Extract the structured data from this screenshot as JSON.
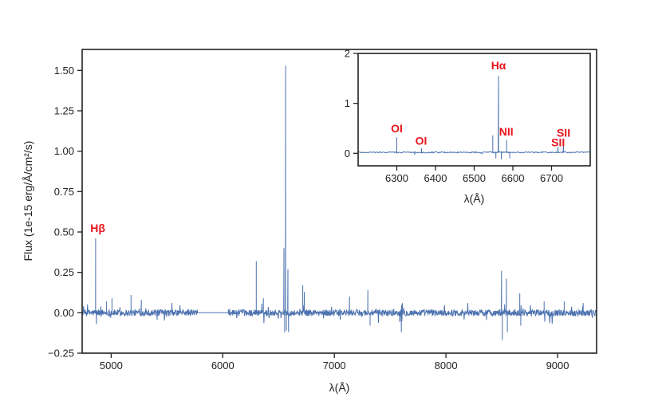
{
  "chart_data": [
    {
      "type": "line",
      "title": "",
      "xlabel": "λ(Å)",
      "ylabel": "Flux (1e-15 erg/Å/cm²/s)",
      "xlim": [
        4740,
        9350
      ],
      "ylim": [
        -0.25,
        1.63
      ],
      "x_ticks": [
        5000,
        6000,
        7000,
        8000,
        9000
      ],
      "y_ticks": [
        -0.25,
        0.0,
        0.25,
        0.5,
        0.75,
        1.0,
        1.25,
        1.5
      ],
      "y_tick_labels": [
        "−0.25",
        "0.00",
        "0.25",
        "0.50",
        "0.75",
        "1.00",
        "1.25",
        "1.50"
      ],
      "grid": false,
      "series": [
        {
          "color": "#4c72b0",
          "baseline": 0.0,
          "noise_amplitude": 0.02,
          "gaps": [
            [
              5775,
              6050
            ]
          ],
          "features": [
            {
              "x": 4861,
              "y": 0.46
            },
            {
              "x": 4868,
              "y": -0.07
            },
            {
              "x": 4959,
              "y": 0.07
            },
            {
              "x": 5007,
              "y": 0.09
            },
            {
              "x": 5178,
              "y": 0.11
            },
            {
              "x": 5270,
              "y": 0.08
            },
            {
              "x": 6300,
              "y": 0.32
            },
            {
              "x": 6364,
              "y": 0.09
            },
            {
              "x": 6548,
              "y": 0.4
            },
            {
              "x": 6555,
              "y": -0.12
            },
            {
              "x": 6563,
              "y": 1.53
            },
            {
              "x": 6570,
              "y": -0.11
            },
            {
              "x": 6584,
              "y": 0.27
            },
            {
              "x": 6590,
              "y": -0.12
            },
            {
              "x": 6717,
              "y": 0.17
            },
            {
              "x": 6731,
              "y": 0.13
            },
            {
              "x": 7136,
              "y": 0.1
            },
            {
              "x": 7300,
              "y": 0.14
            },
            {
              "x": 7320,
              "y": -0.08
            },
            {
              "x": 7600,
              "y": -0.12
            },
            {
              "x": 7610,
              "y": 0.06
            },
            {
              "x": 8498,
              "y": 0.26
            },
            {
              "x": 8505,
              "y": -0.17
            },
            {
              "x": 8542,
              "y": 0.21
            },
            {
              "x": 8550,
              "y": -0.12
            },
            {
              "x": 8662,
              "y": 0.12
            },
            {
              "x": 8670,
              "y": -0.08
            },
            {
              "x": 8880,
              "y": 0.07
            },
            {
              "x": 9060,
              "y": 0.07
            },
            {
              "x": 9230,
              "y": 0.06
            }
          ]
        }
      ],
      "annotations": [
        {
          "text": "Hβ",
          "x": 4880,
          "y": 0.5
        }
      ]
    },
    {
      "type": "line",
      "title": "",
      "xlabel": "λ(Å)",
      "ylabel": "",
      "xlim": [
        6200,
        6800
      ],
      "ylim": [
        -0.25,
        2.0
      ],
      "x_ticks": [
        6300,
        6400,
        6500,
        6600,
        6700
      ],
      "y_ticks": [
        0,
        1,
        2
      ],
      "grid": false,
      "series": [
        {
          "color": "#4c72b0",
          "baseline": 0.02,
          "noise_amplitude": 0.012,
          "features": [
            {
              "x": 6300,
              "y": 0.32
            },
            {
              "x": 6364,
              "y": 0.1
            },
            {
              "x": 6548,
              "y": 0.36
            },
            {
              "x": 6556,
              "y": -0.1
            },
            {
              "x": 6563,
              "y": 1.55
            },
            {
              "x": 6570,
              "y": -0.12
            },
            {
              "x": 6584,
              "y": 0.27
            },
            {
              "x": 6592,
              "y": -0.1
            },
            {
              "x": 6717,
              "y": 0.13
            },
            {
              "x": 6731,
              "y": 0.18
            }
          ]
        }
      ],
      "annotations": [
        {
          "text": "OI",
          "x": 6300,
          "y": 0.42
        },
        {
          "text": "OI",
          "x": 6363,
          "y": 0.17
        },
        {
          "text": "Hα",
          "x": 6563,
          "y": 1.68
        },
        {
          "text": "NII",
          "x": 6583,
          "y": 0.36
        },
        {
          "text": "SII",
          "x": 6717,
          "y": 0.14
        },
        {
          "text": "SII",
          "x": 6731,
          "y": 0.33
        }
      ]
    }
  ]
}
